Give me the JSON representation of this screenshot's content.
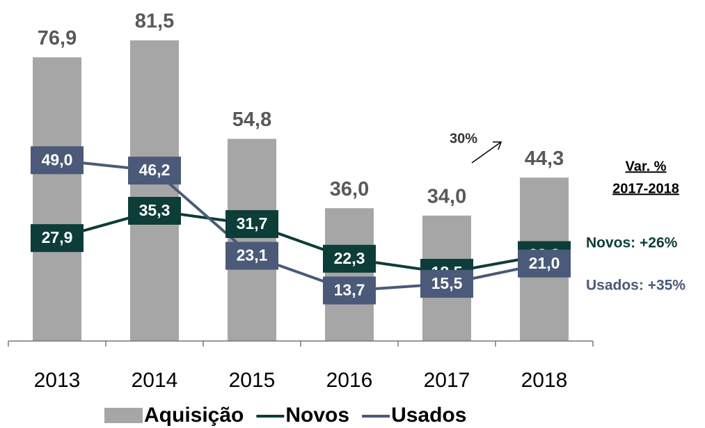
{
  "chart_data": {
    "type": "bar-line",
    "categories": [
      "2013",
      "2014",
      "2015",
      "2016",
      "2017",
      "2018"
    ],
    "series": [
      {
        "name": "Aquisição",
        "type": "bar",
        "color": "#a6a6a6",
        "values": [
          76.9,
          81.5,
          54.8,
          36.0,
          34.0,
          44.3
        ],
        "value_labels": [
          "76,9",
          "81,5",
          "54,8",
          "36,0",
          "34,0",
          "44,3"
        ]
      },
      {
        "name": "Novos",
        "type": "line",
        "color": "#0d3d38",
        "values": [
          27.9,
          35.3,
          31.7,
          22.3,
          18.5,
          23.3
        ],
        "value_labels": [
          "27,9",
          "35,3",
          "31,7",
          "22,3",
          "18,5",
          "23,3"
        ]
      },
      {
        "name": "Usados",
        "type": "line",
        "color": "#4a5a78",
        "values": [
          49.0,
          46.2,
          23.1,
          13.7,
          15.5,
          21.0
        ],
        "value_labels": [
          "49,0",
          "46,2",
          "23,1",
          "13,7",
          "15,5",
          "21,0"
        ]
      }
    ],
    "ylim": [
      0,
      85
    ],
    "annotations": [
      "30%",
      "Var. %",
      "2017-2018",
      "Novos: +26%",
      "Usados: +35%"
    ]
  }
}
